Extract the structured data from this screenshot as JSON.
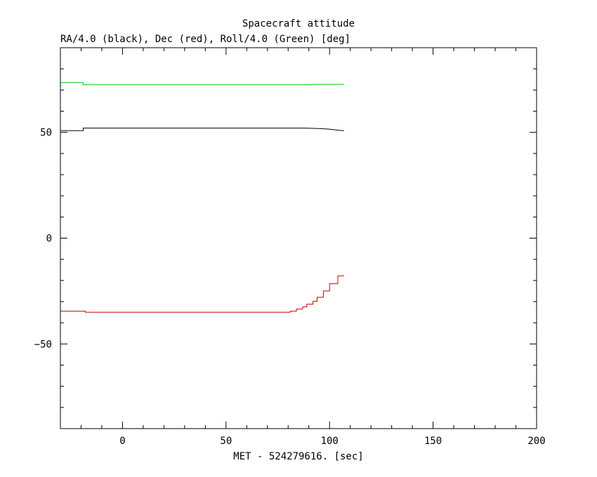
{
  "chart_data": {
    "type": "line",
    "title": "Spacecraft attitude",
    "ylabel": "RA/4.0 (black), Dec (red), Roll/4.0 (Green) [deg]",
    "xlabel": "MET - 524279616. [sec]",
    "xlim": [
      -30,
      200
    ],
    "ylim": [
      -90,
      90
    ],
    "x_major_ticks": [
      0,
      50,
      100,
      150,
      200
    ],
    "x_tick_labels": [
      "0",
      "50",
      "100",
      "150",
      "200"
    ],
    "x_minor_step": 10,
    "y_major_ticks": [
      -50,
      0,
      50
    ],
    "y_tick_labels": [
      "−50",
      "0",
      "50"
    ],
    "y_minor_step": 10,
    "grid": false,
    "series": [
      {
        "color": "#000000",
        "step": false,
        "points": [
          [
            -30,
            50.8
          ],
          [
            -19,
            50.8
          ],
          [
            -19,
            52
          ],
          [
            -18,
            52
          ],
          [
            -10,
            52
          ],
          [
            0,
            52
          ],
          [
            50,
            52
          ],
          [
            88,
            52
          ],
          [
            95,
            51.8
          ],
          [
            100,
            51.5
          ],
          [
            104,
            51
          ],
          [
            107,
            50.8
          ]
        ]
      },
      {
        "color": "#cc0000",
        "step": true,
        "points": [
          [
            -30,
            -34.5
          ],
          [
            -18,
            -34.5
          ],
          [
            -18,
            -35
          ],
          [
            81,
            -35
          ],
          [
            81,
            -34.5
          ],
          [
            84,
            -34.5
          ],
          [
            84,
            -33.5
          ],
          [
            87,
            -33.5
          ],
          [
            87,
            -32.5
          ],
          [
            89,
            -32.5
          ],
          [
            89,
            -31.2
          ],
          [
            92,
            -31.2
          ],
          [
            92,
            -29.8
          ],
          [
            94,
            -29.8
          ],
          [
            94,
            -27.9
          ],
          [
            97,
            -27.9
          ],
          [
            97,
            -25
          ],
          [
            100,
            -25
          ],
          [
            100,
            -21.5
          ],
          [
            104,
            -21.5
          ],
          [
            104,
            -17.8
          ],
          [
            107,
            -17.8
          ]
        ]
      },
      {
        "color": "#00cc00",
        "step": false,
        "points": [
          [
            -30,
            73.5
          ],
          [
            -19,
            73.5
          ],
          [
            -19,
            72.5
          ],
          [
            0,
            72.5
          ],
          [
            50,
            72.5
          ],
          [
            91,
            72.5
          ],
          [
            91,
            72.7
          ],
          [
            107,
            72.7
          ]
        ]
      }
    ]
  }
}
